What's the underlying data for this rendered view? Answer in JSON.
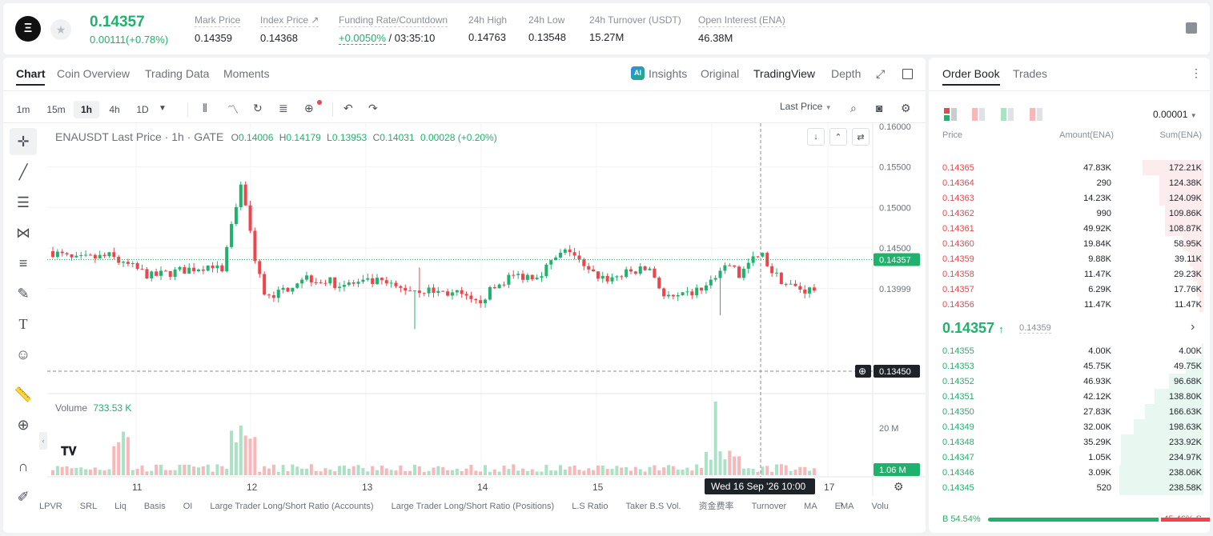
{
  "ticker": {
    "last_price": "0.14357",
    "change": "0.00111(+0.78%)",
    "stats": [
      {
        "label": "Mark Price",
        "value": "0.14359"
      },
      {
        "label": "Index Price ↗",
        "value": "0.14368"
      },
      {
        "label": "Funding Rate/Countdown",
        "value_green": "+0.0050%",
        "value": " / 03:35:10"
      },
      {
        "label": "24h High",
        "value": "0.14763"
      },
      {
        "label": "24h Low",
        "value": "0.13548"
      },
      {
        "label": "24h Turnover (USDT)",
        "value": "15.27M"
      },
      {
        "label": "Open Interest (ENA)",
        "value": "46.38M"
      }
    ]
  },
  "chart_tabs": [
    "Chart",
    "Coin Overview",
    "Trading Data",
    "Moments"
  ],
  "view_tabs": {
    "insights": "Insights",
    "original": "Original",
    "tradingview": "TradingView",
    "depth": "Depth"
  },
  "timeframes": [
    "1m",
    "15m",
    "1h",
    "4h",
    "1D"
  ],
  "price_type": "Last Price",
  "legend": {
    "symbol": "ENAUSDT Last Price · 1h · GATE",
    "o_label": "O",
    "o": "0.14006",
    "h_label": "H",
    "h": "0.14179",
    "l_label": "L",
    "l": "0.13953",
    "c_label": "C",
    "c": "0.14031",
    "chg": "0.00028 (+0.20%)"
  },
  "volume_legend": {
    "label": "Volume",
    "value": "733.53 K"
  },
  "price_axis": [
    "0.16000",
    "0.15500",
    "0.15000",
    "0.14500",
    "0.13999"
  ],
  "price_marker": "0.14357",
  "cross_marker": "0.13450",
  "volume_axis": {
    "tick": "20 M",
    "marker": "1.06 M"
  },
  "time_axis": [
    "11",
    "12",
    "13",
    "14",
    "15",
    "17"
  ],
  "cross_time": "Wed 16 Sep '26     10:00",
  "indicators": [
    "LPVR",
    "SRL",
    "Liq",
    "Basis",
    "OI",
    "Large Trader Long/Short Ratio (Accounts)",
    "Large Trader Long/Short Ratio (Positions)",
    "L.S Ratio",
    "Taker B.S Vol.",
    "资金费率",
    "Turnover",
    "MA",
    "EMA",
    "Volu"
  ],
  "orderbook": {
    "tabs": [
      "Order Book",
      "Trades"
    ],
    "precision": "0.00001",
    "headers": [
      "Price",
      "Amount(ENA)",
      "Sum(ENA)"
    ],
    "asks": [
      [
        "0.14365",
        "47.83K",
        "172.21K"
      ],
      [
        "0.14364",
        "290",
        "124.38K"
      ],
      [
        "0.14363",
        "14.23K",
        "124.09K"
      ],
      [
        "0.14362",
        "990",
        "109.86K"
      ],
      [
        "0.14361",
        "49.92K",
        "108.87K"
      ],
      [
        "0.14360",
        "19.84K",
        "58.95K"
      ],
      [
        "0.14359",
        "9.88K",
        "39.11K"
      ],
      [
        "0.14358",
        "11.47K",
        "29.23K"
      ],
      [
        "0.14357",
        "6.29K",
        "17.76K"
      ],
      [
        "0.14356",
        "11.47K",
        "11.47K"
      ]
    ],
    "mid_price": "0.14357",
    "mid_mark": "0.14359",
    "bids": [
      [
        "0.14355",
        "4.00K",
        "4.00K"
      ],
      [
        "0.14353",
        "45.75K",
        "49.75K"
      ],
      [
        "0.14352",
        "46.93K",
        "96.68K"
      ],
      [
        "0.14351",
        "42.12K",
        "138.80K"
      ],
      [
        "0.14350",
        "27.83K",
        "166.63K"
      ],
      [
        "0.14349",
        "32.00K",
        "198.63K"
      ],
      [
        "0.14348",
        "35.29K",
        "233.92K"
      ],
      [
        "0.14347",
        "1.05K",
        "234.97K"
      ],
      [
        "0.14346",
        "3.09K",
        "238.06K"
      ],
      [
        "0.14345",
        "520",
        "238.58K"
      ]
    ],
    "buy_ratio": "B 54.54%",
    "sell_ratio": "45.46% S",
    "buy_fraction": 0.5454
  },
  "colors": {
    "up": "#20b26c",
    "down": "#ef454a"
  }
}
